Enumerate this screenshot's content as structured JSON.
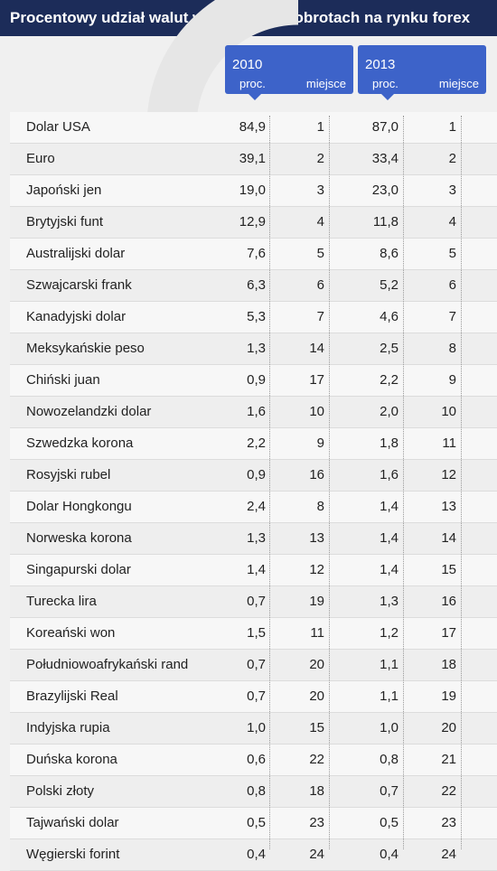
{
  "title": "Procentowy udział walut w globalnych obrotach na rynku forex",
  "headers": {
    "y2010": {
      "year": "2010",
      "proc": "proc.",
      "miejsce": "miejsce"
    },
    "y2013": {
      "year": "2013",
      "proc": "proc.",
      "miejsce": "miejsce"
    }
  },
  "rows": [
    {
      "name": "Dolar USA",
      "p2010": "84,9",
      "m2010": "1",
      "p2013": "87,0",
      "m2013": "1"
    },
    {
      "name": "Euro",
      "p2010": "39,1",
      "m2010": "2",
      "p2013": "33,4",
      "m2013": "2"
    },
    {
      "name": "Japoński jen",
      "p2010": "19,0",
      "m2010": "3",
      "p2013": "23,0",
      "m2013": "3"
    },
    {
      "name": "Brytyjski funt",
      "p2010": "12,9",
      "m2010": "4",
      "p2013": "11,8",
      "m2013": "4"
    },
    {
      "name": "Australijski dolar",
      "p2010": "7,6",
      "m2010": "5",
      "p2013": "8,6",
      "m2013": "5"
    },
    {
      "name": "Szwajcarski frank",
      "p2010": "6,3",
      "m2010": "6",
      "p2013": "5,2",
      "m2013": "6"
    },
    {
      "name": "Kanadyjski dolar",
      "p2010": "5,3",
      "m2010": "7",
      "p2013": "4,6",
      "m2013": "7"
    },
    {
      "name": "Meksykańskie peso",
      "p2010": "1,3",
      "m2010": "14",
      "p2013": "2,5",
      "m2013": "8"
    },
    {
      "name": "Chiński juan",
      "p2010": "0,9",
      "m2010": "17",
      "p2013": "2,2",
      "m2013": "9"
    },
    {
      "name": "Nowozelandzki dolar",
      "p2010": "1,6",
      "m2010": "10",
      "p2013": "2,0",
      "m2013": "10"
    },
    {
      "name": "Szwedzka korona",
      "p2010": "2,2",
      "m2010": "9",
      "p2013": "1,8",
      "m2013": "11"
    },
    {
      "name": "Rosyjski rubel",
      "p2010": "0,9",
      "m2010": "16",
      "p2013": "1,6",
      "m2013": "12"
    },
    {
      "name": "Dolar Hongkongu",
      "p2010": "2,4",
      "m2010": "8",
      "p2013": "1,4",
      "m2013": "13"
    },
    {
      "name": "Norweska korona",
      "p2010": "1,3",
      "m2010": "13",
      "p2013": "1,4",
      "m2013": "14"
    },
    {
      "name": "Singapurski dolar",
      "p2010": "1,4",
      "m2010": "12",
      "p2013": "1,4",
      "m2013": "15"
    },
    {
      "name": "Turecka lira",
      "p2010": "0,7",
      "m2010": "19",
      "p2013": "1,3",
      "m2013": "16"
    },
    {
      "name": "Koreański won",
      "p2010": "1,5",
      "m2010": "11",
      "p2013": "1,2",
      "m2013": "17"
    },
    {
      "name": "Południowoafrykański rand",
      "p2010": "0,7",
      "m2010": "20",
      "p2013": "1,1",
      "m2013": "18"
    },
    {
      "name": "Brazylijski Real",
      "p2010": "0,7",
      "m2010": "20",
      "p2013": "1,1",
      "m2013": "19"
    },
    {
      "name": "Indyjska rupia",
      "p2010": "1,0",
      "m2010": "15",
      "p2013": "1,0",
      "m2013": "20"
    },
    {
      "name": "Duńska korona",
      "p2010": "0,6",
      "m2010": "22",
      "p2013": "0,8",
      "m2013": "21"
    },
    {
      "name": "Polski złoty",
      "p2010": "0,8",
      "m2010": "18",
      "p2013": "0,7",
      "m2013": "22"
    },
    {
      "name": "Tajwański dolar",
      "p2010": "0,5",
      "m2010": "23",
      "p2013": "0,5",
      "m2013": "23"
    },
    {
      "name": "Węgierski forint",
      "p2010": "0,4",
      "m2010": "24",
      "p2013": "0,4",
      "m2013": "24"
    }
  ],
  "colors": {
    "title_bg": "#1c2c59",
    "header_bg": "#3d63c9"
  }
}
